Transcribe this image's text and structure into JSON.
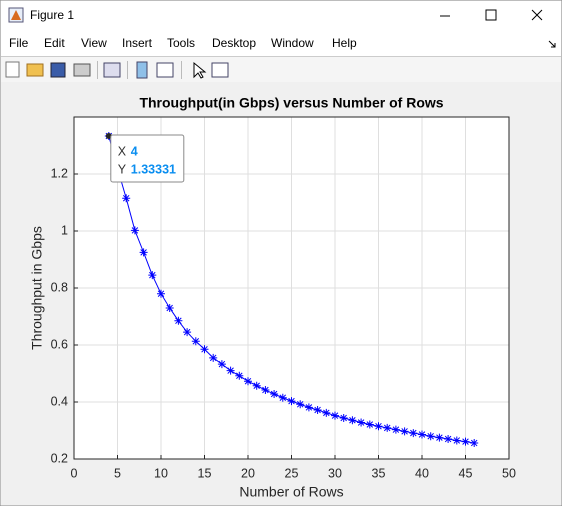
{
  "window": {
    "title": "Figure 1",
    "menu": [
      "File",
      "Edit",
      "View",
      "Insert",
      "Tools",
      "Desktop",
      "Window",
      "Help"
    ]
  },
  "chart_data": {
    "type": "line",
    "title": "Throughput(in Gbps) versus Number of Rows",
    "x_label": "Number of Rows",
    "y_label": "Throughput in Gbps",
    "series": [
      {
        "color": "#0000ff",
        "marker": "*",
        "x": [
          4,
          5,
          6,
          7,
          8,
          9,
          10,
          11,
          12,
          13,
          14,
          15,
          16,
          17,
          18,
          19,
          20,
          21,
          22,
          23,
          24,
          25,
          26,
          27,
          28,
          29,
          30,
          31,
          32,
          33,
          34,
          35,
          36,
          37,
          38,
          39,
          40,
          41,
          42,
          43,
          44,
          45,
          46
        ],
        "values": [
          1.33331,
          1.22,
          1.115,
          1.002,
          0.925,
          0.845,
          0.78,
          0.73,
          0.685,
          0.645,
          0.613,
          0.585,
          0.555,
          0.533,
          0.51,
          0.492,
          0.473,
          0.457,
          0.442,
          0.428,
          0.415,
          0.403,
          0.392,
          0.381,
          0.372,
          0.362,
          0.352,
          0.344,
          0.336,
          0.328,
          0.321,
          0.315,
          0.309,
          0.303,
          0.297,
          0.291,
          0.286,
          0.28,
          0.275,
          0.27,
          0.265,
          0.261,
          0.256
        ]
      }
    ],
    "xlim": [
      0,
      50
    ],
    "xticks": [
      0,
      5,
      10,
      15,
      20,
      25,
      30,
      35,
      40,
      45,
      50
    ],
    "ylim": [
      0.2,
      1.4
    ],
    "yticks": [
      0.2,
      0.4,
      0.6,
      0.8,
      1,
      1.2
    ],
    "grid": true,
    "datatip": {
      "x_label": "X",
      "y_label": "Y"
    }
  }
}
